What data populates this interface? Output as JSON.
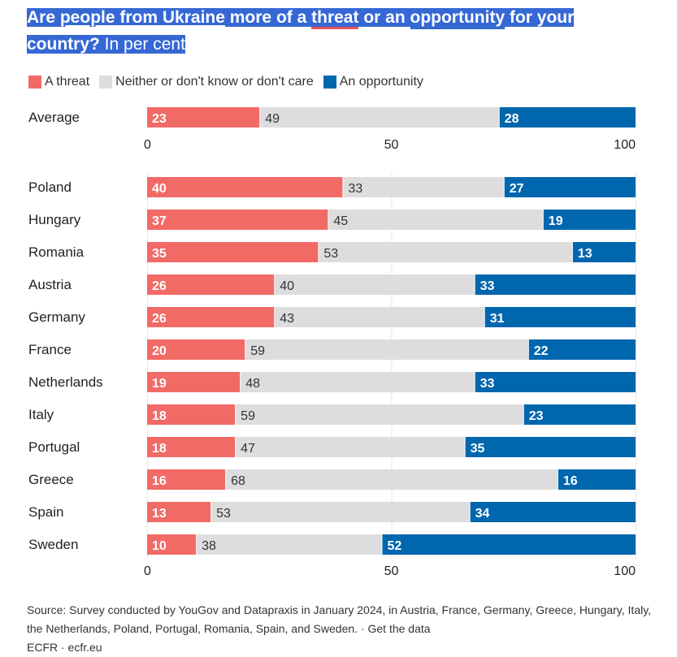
{
  "title": {
    "part1": "Are ",
    "part2": "people from Ukraine",
    "part3": " more of a ",
    "part4": "threat",
    "part5": " or an ",
    "part6": "opportunity",
    "part7": " for your country?",
    "part8": " In per cent"
  },
  "colors": {
    "threat": "#F26A66",
    "neither": "#DDDDDD",
    "opportunity": "#0066AE",
    "highlight": "#3568D4"
  },
  "chart_data": {
    "type": "bar",
    "orientation": "horizontal-stacked",
    "title": "Are people from Ukraine more of a threat or an opportunity for your country? In per cent",
    "xlabel": "",
    "ylabel": "",
    "xlim": [
      0,
      100
    ],
    "xticks": [
      "0",
      "50",
      "100"
    ],
    "grid": true,
    "legend": [
      "A threat",
      "Neither or don't know or don't care",
      "An opportunity"
    ],
    "legend_position": "top-left",
    "average": {
      "category": "Average",
      "values": [
        23,
        49,
        28
      ]
    },
    "categories": [
      "Poland",
      "Hungary",
      "Romania",
      "Austria",
      "Germany",
      "France",
      "Netherlands",
      "Italy",
      "Portugal",
      "Greece",
      "Spain",
      "Sweden"
    ],
    "series": [
      {
        "name": "A threat",
        "values": [
          40,
          37,
          35,
          26,
          26,
          20,
          19,
          18,
          18,
          16,
          13,
          10
        ]
      },
      {
        "name": "Neither or don't know or don't care",
        "values": [
          33,
          45,
          53,
          40,
          43,
          59,
          48,
          59,
          47,
          68,
          53,
          38
        ]
      },
      {
        "name": "An opportunity",
        "values": [
          27,
          19,
          13,
          33,
          31,
          22,
          33,
          23,
          35,
          16,
          34,
          52
        ]
      }
    ]
  },
  "source": {
    "text": "Source: Survey conducted by YouGov and Datapraxis in January 2024, in Austria, France, Germany, Greece, Hungary, Italy, the Netherlands, Poland, Portugal, Romania, Spain, and Sweden. · ",
    "link": "Get the data",
    "footer": "ECFR · ecfr.eu"
  }
}
